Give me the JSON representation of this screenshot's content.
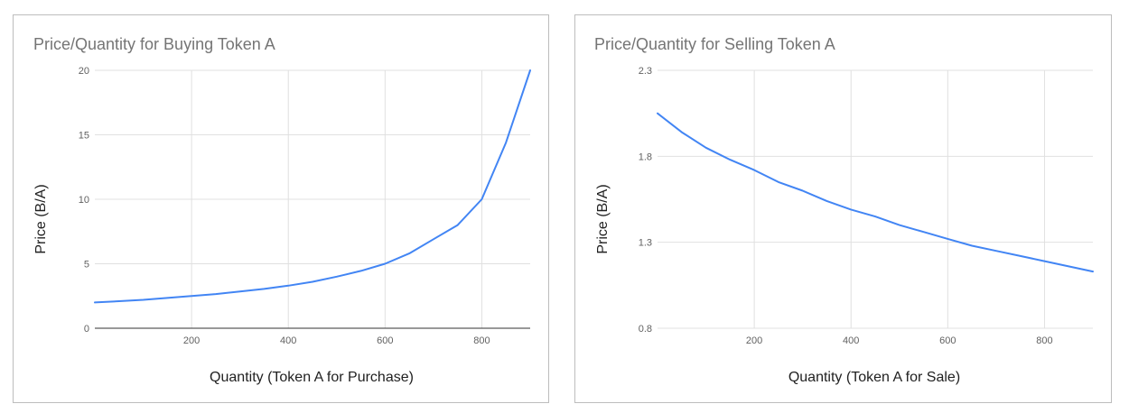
{
  "chart_data": [
    {
      "type": "line",
      "title": "Price/Quantity for Buying Token A",
      "xlabel": "Quantity (Token A for Purchase)",
      "ylabel": "Price (B/A)",
      "xlim": [
        0,
        900
      ],
      "ylim": [
        0,
        20
      ],
      "xticks": [
        "200",
        "400",
        "600",
        "800"
      ],
      "yticks": [
        "0",
        "5",
        "10",
        "15",
        "20"
      ],
      "xtick_values": [
        200,
        400,
        600,
        800
      ],
      "ytick_values": [
        0,
        5,
        10,
        15,
        20
      ],
      "grid": true,
      "line_color": "#4285f4",
      "series": [
        {
          "x": [
            0,
            50,
            100,
            150,
            200,
            250,
            300,
            350,
            400,
            450,
            500,
            550,
            600,
            650,
            700,
            750,
            800,
            850,
            900
          ],
          "y": [
            2.0,
            2.1,
            2.2,
            2.35,
            2.5,
            2.65,
            2.85,
            3.05,
            3.3,
            3.6,
            4.0,
            4.45,
            5.0,
            5.8,
            6.9,
            8.0,
            10.0,
            14.4,
            20.0
          ]
        }
      ]
    },
    {
      "type": "line",
      "title": "Price/Quantity for Selling Token A",
      "xlabel": "Quantity (Token A for Sale)",
      "ylabel": "Price (B/A)",
      "xlim": [
        0,
        900
      ],
      "ylim": [
        0.8,
        2.3
      ],
      "xticks": [
        "200",
        "400",
        "600",
        "800"
      ],
      "yticks": [
        "0.8",
        "1.3",
        "1.8",
        "2.3"
      ],
      "xtick_values": [
        200,
        400,
        600,
        800
      ],
      "ytick_values": [
        0.8,
        1.3,
        1.8,
        2.3
      ],
      "grid": true,
      "line_color": "#4285f4",
      "series": [
        {
          "x": [
            0,
            50,
            100,
            150,
            200,
            250,
            300,
            350,
            400,
            450,
            500,
            550,
            600,
            650,
            700,
            750,
            800,
            850,
            900
          ],
          "y": [
            2.05,
            1.94,
            1.85,
            1.78,
            1.72,
            1.65,
            1.6,
            1.54,
            1.49,
            1.45,
            1.4,
            1.36,
            1.32,
            1.28,
            1.25,
            1.22,
            1.19,
            1.16,
            1.13
          ]
        }
      ]
    }
  ]
}
